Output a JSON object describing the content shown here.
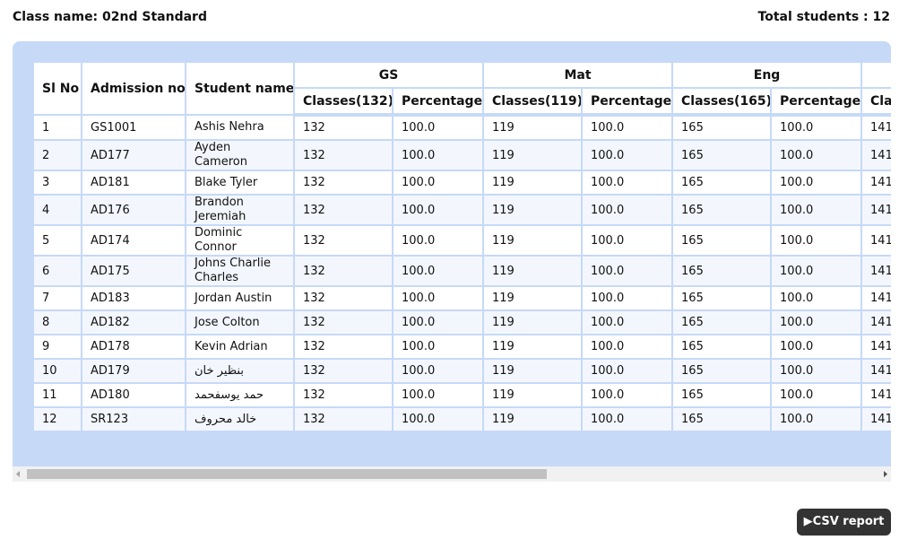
{
  "header": {
    "class_label": "Class name:",
    "class_name": "02nd Standard",
    "total_label": "Total students :",
    "total": "12"
  },
  "table": {
    "columns": [
      "Sl No",
      "Admission no",
      "Student name"
    ],
    "groups": [
      "GS",
      "Mat",
      "Eng"
    ],
    "subheaders": [
      "Classes(132)",
      "Percentage",
      "Classes(119)",
      "Percentage",
      "Classes(165)",
      "Percentage",
      "Cla"
    ],
    "rows": [
      [
        "1",
        "GS1001",
        "Ashis Nehra",
        "132",
        "100.0",
        "119",
        "100.0",
        "165",
        "100.0",
        "141"
      ],
      [
        "2",
        "AD177",
        "Ayden Cameron",
        "132",
        "100.0",
        "119",
        "100.0",
        "165",
        "100.0",
        "141"
      ],
      [
        "3",
        "AD181",
        "Blake Tyler",
        "132",
        "100.0",
        "119",
        "100.0",
        "165",
        "100.0",
        "141"
      ],
      [
        "4",
        "AD176",
        "Brandon Jeremiah",
        "132",
        "100.0",
        "119",
        "100.0",
        "165",
        "100.0",
        "141"
      ],
      [
        "5",
        "AD174",
        "Dominic Connor",
        "132",
        "100.0",
        "119",
        "100.0",
        "165",
        "100.0",
        "141"
      ],
      [
        "6",
        "AD175",
        "Johns Charlie Charles",
        "132",
        "100.0",
        "119",
        "100.0",
        "165",
        "100.0",
        "141"
      ],
      [
        "7",
        "AD183",
        "Jordan Austin",
        "132",
        "100.0",
        "119",
        "100.0",
        "165",
        "100.0",
        "141"
      ],
      [
        "8",
        "AD182",
        "Jose Colton",
        "132",
        "100.0",
        "119",
        "100.0",
        "165",
        "100.0",
        "141"
      ],
      [
        "9",
        "AD178",
        "Kevin Adrian",
        "132",
        "100.0",
        "119",
        "100.0",
        "165",
        "100.0",
        "141"
      ],
      [
        "10",
        "AD179",
        "بنظير خان",
        "132",
        "100.0",
        "119",
        "100.0",
        "165",
        "100.0",
        "141"
      ],
      [
        "11",
        "AD180",
        "حمد يوسفحمد",
        "132",
        "100.0",
        "119",
        "100.0",
        "165",
        "100.0",
        "141"
      ],
      [
        "12",
        "SR123",
        "خالد محروف",
        "132",
        "100.0",
        "119",
        "100.0",
        "165",
        "100.0",
        "141"
      ]
    ]
  },
  "button": {
    "label": "CSV report"
  }
}
